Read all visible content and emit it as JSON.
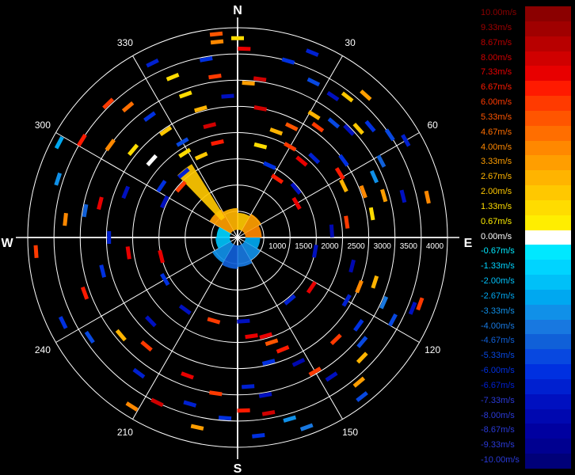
{
  "chart_data": {
    "type": "polar-radar-scatter",
    "center_marker": "+",
    "compass": {
      "north": "N",
      "south": "S",
      "east": "E",
      "west": "W"
    },
    "angle_labels": [
      {
        "deg": 30,
        "text": "30"
      },
      {
        "deg": 60,
        "text": "60"
      },
      {
        "deg": 120,
        "text": "120"
      },
      {
        "deg": 150,
        "text": "150"
      },
      {
        "deg": 210,
        "text": "210"
      },
      {
        "deg": 240,
        "text": "240"
      },
      {
        "deg": 300,
        "text": "300"
      },
      {
        "deg": 330,
        "text": "330"
      }
    ],
    "range_max": 4000,
    "range_rings": [
      500,
      1000,
      1500,
      2000,
      2500,
      3000,
      3500,
      4000
    ],
    "range_labels": [
      "1000",
      "1500",
      "2000",
      "2500",
      "3000",
      "3500",
      "4000"
    ],
    "spokes_deg": [
      0,
      30,
      60,
      90,
      120,
      150,
      180,
      210,
      240,
      270,
      300,
      330
    ],
    "legend": [
      {
        "label": "10.00m/s",
        "value": 10.0,
        "color": "#8b0000"
      },
      {
        "label": "9.33m/s",
        "value": 9.33,
        "color": "#a00000"
      },
      {
        "label": "8.67m/s",
        "value": 8.67,
        "color": "#b80000"
      },
      {
        "label": "8.00m/s",
        "value": 8.0,
        "color": "#d00000"
      },
      {
        "label": "7.33m/s",
        "value": 7.33,
        "color": "#e80000"
      },
      {
        "label": "6.67m/s",
        "value": 6.67,
        "color": "#ff1a00"
      },
      {
        "label": "6.00m/s",
        "value": 6.0,
        "color": "#ff3a00"
      },
      {
        "label": "5.33m/s",
        "value": 5.33,
        "color": "#ff5500"
      },
      {
        "label": "4.67m/s",
        "value": 4.67,
        "color": "#ff6e00"
      },
      {
        "label": "4.00m/s",
        "value": 4.0,
        "color": "#ff8800"
      },
      {
        "label": "3.33m/s",
        "value": 3.33,
        "color": "#ff9e00"
      },
      {
        "label": "2.67m/s",
        "value": 2.67,
        "color": "#ffb400"
      },
      {
        "label": "2.00m/s",
        "value": 2.0,
        "color": "#ffc800"
      },
      {
        "label": "1.33m/s",
        "value": 1.33,
        "color": "#ffdc00"
      },
      {
        "label": "0.67m/s",
        "value": 0.67,
        "color": "#ffee00"
      },
      {
        "label": "0.00m/s",
        "value": 0.0,
        "color": "#ffffff"
      },
      {
        "label": "-0.67m/s",
        "value": -0.67,
        "color": "#00e8ff"
      },
      {
        "label": "-1.33m/s",
        "value": -1.33,
        "color": "#00d4ff"
      },
      {
        "label": "-2.00m/s",
        "value": -2.0,
        "color": "#00c0f8"
      },
      {
        "label": "-2.67m/s",
        "value": -2.67,
        "color": "#00a8f0"
      },
      {
        "label": "-3.33m/s",
        "value": -3.33,
        "color": "#1090e8"
      },
      {
        "label": "-4.00m/s",
        "value": -4.0,
        "color": "#1878e0"
      },
      {
        "label": "-4.67m/s",
        "value": -4.67,
        "color": "#1060d8"
      },
      {
        "label": "-5.33m/s",
        "value": -5.33,
        "color": "#0848e0"
      },
      {
        "label": "-6.00m/s",
        "value": -6.0,
        "color": "#0030e0"
      },
      {
        "label": "-6.67m/s",
        "value": -6.67,
        "color": "#0020d0"
      },
      {
        "label": "-7.33m/s",
        "value": -7.33,
        "color": "#0010c0"
      },
      {
        "label": "-8.00m/s",
        "value": -8.0,
        "color": "#0008b0"
      },
      {
        "label": "-8.67m/s",
        "value": -8.67,
        "color": "#0000a0"
      },
      {
        "label": "-9.33m/s",
        "value": -9.33,
        "color": "#000090"
      },
      {
        "label": "-10.00m/s",
        "value": -10.0,
        "color": "#000078"
      }
    ],
    "points": [
      {
        "az": 0,
        "r": 3800,
        "v": 1.3
      },
      {
        "az": 354,
        "r": 3750,
        "v": 4.0
      },
      {
        "az": 354,
        "r": 3900,
        "v": 5.3
      },
      {
        "az": 2,
        "r": 3600,
        "v": 7.3
      },
      {
        "az": 8,
        "r": 3050,
        "v": 8.0
      },
      {
        "az": 4,
        "r": 2950,
        "v": 3.0
      },
      {
        "az": 16,
        "r": 3500,
        "v": -6.0
      },
      {
        "az": 22,
        "r": 3800,
        "v": -6.7
      },
      {
        "az": 26,
        "r": 3300,
        "v": -5.3
      },
      {
        "az": 34,
        "r": 3250,
        "v": -7.3
      },
      {
        "az": 38,
        "r": 3400,
        "v": 2.0
      },
      {
        "az": 42,
        "r": 3650,
        "v": 3.3
      },
      {
        "az": 32,
        "r": 2750,
        "v": 2.7
      },
      {
        "az": 36,
        "r": 2600,
        "v": 6.0
      },
      {
        "az": 40,
        "r": 2850,
        "v": -5.3
      },
      {
        "az": 46,
        "r": 2950,
        "v": -7.3
      },
      {
        "az": 50,
        "r": 3300,
        "v": -6.0
      },
      {
        "az": 48,
        "r": 3100,
        "v": 2.0
      },
      {
        "az": 56,
        "r": 3500,
        "v": -5.3
      },
      {
        "az": 60,
        "r": 3700,
        "v": -6.7
      },
      {
        "az": 62,
        "r": 3100,
        "v": -4.7
      },
      {
        "az": 66,
        "r": 2850,
        "v": -3.3
      },
      {
        "az": 54,
        "r": 2500,
        "v": -6.0
      },
      {
        "az": 58,
        "r": 2300,
        "v": 6.7
      },
      {
        "az": 64,
        "r": 2250,
        "v": 2.7
      },
      {
        "az": 70,
        "r": 2550,
        "v": 4.0
      },
      {
        "az": 74,
        "r": 2900,
        "v": 3.3
      },
      {
        "az": 76,
        "r": 3250,
        "v": -7.3
      },
      {
        "az": 80,
        "r": 2600,
        "v": 1.3
      },
      {
        "az": 82,
        "r": 2100,
        "v": 6.0
      },
      {
        "az": 86,
        "r": 1800,
        "v": -8.0
      },
      {
        "az": 78,
        "r": 3700,
        "v": 4.0
      },
      {
        "az": 44,
        "r": 2100,
        "v": -6.7
      },
      {
        "az": 40,
        "r": 1900,
        "v": 7.3
      },
      {
        "az": 30,
        "r": 2000,
        "v": 6.0
      },
      {
        "az": 26,
        "r": 2350,
        "v": 5.3
      },
      {
        "az": 20,
        "r": 2150,
        "v": 2.7
      },
      {
        "az": 14,
        "r": 1800,
        "v": 1.3
      },
      {
        "az": 10,
        "r": 2500,
        "v": 8.0
      },
      {
        "az": 24,
        "r": 1500,
        "v": -6.0
      },
      {
        "az": 34,
        "r": 1350,
        "v": 6.7
      },
      {
        "az": 50,
        "r": 1450,
        "v": -7.3
      },
      {
        "az": 60,
        "r": 1300,
        "v": 7.3
      },
      {
        "az": 110,
        "r": 3700,
        "v": 6.0
      },
      {
        "az": 112,
        "r": 3600,
        "v": -7.3
      },
      {
        "az": 118,
        "r": 3350,
        "v": -5.3
      },
      {
        "az": 114,
        "r": 3050,
        "v": -4.0
      },
      {
        "az": 108,
        "r": 2750,
        "v": 2.7
      },
      {
        "az": 112,
        "r": 2500,
        "v": 4.0
      },
      {
        "az": 104,
        "r": 2250,
        "v": -8.0
      },
      {
        "az": 120,
        "r": 2400,
        "v": -6.7
      },
      {
        "az": 126,
        "r": 2850,
        "v": -6.0
      },
      {
        "az": 130,
        "r": 3100,
        "v": -5.3
      },
      {
        "az": 136,
        "r": 2700,
        "v": 6.0
      },
      {
        "az": 134,
        "r": 3300,
        "v": 2.7
      },
      {
        "az": 140,
        "r": 3600,
        "v": 3.3
      },
      {
        "az": 142,
        "r": 3850,
        "v": -5.3
      },
      {
        "az": 146,
        "r": 3200,
        "v": -7.3
      },
      {
        "az": 150,
        "r": 2950,
        "v": 6.0
      },
      {
        "az": 154,
        "r": 2650,
        "v": -8.0
      },
      {
        "az": 158,
        "r": 2300,
        "v": 6.7
      },
      {
        "az": 162,
        "r": 2100,
        "v": 5.3
      },
      {
        "az": 164,
        "r": 1950,
        "v": 7.3
      },
      {
        "az": 166,
        "r": 2450,
        "v": -6.0
      },
      {
        "az": 170,
        "r": 3050,
        "v": -7.3
      },
      {
        "az": 170,
        "r": 3400,
        "v": 8.0
      },
      {
        "az": 164,
        "r": 3600,
        "v": -3.3
      },
      {
        "az": 160,
        "r": 3850,
        "v": -4.0
      },
      {
        "az": 174,
        "r": 3800,
        "v": -6.0
      },
      {
        "az": 178,
        "r": 3300,
        "v": 6.7
      },
      {
        "az": 176,
        "r": 2850,
        "v": -6.7
      },
      {
        "az": 172,
        "r": 1900,
        "v": 7.3
      },
      {
        "az": 176,
        "r": 1600,
        "v": -7.3
      },
      {
        "az": 184,
        "r": 3450,
        "v": -6.0
      },
      {
        "az": 188,
        "r": 3000,
        "v": 6.0
      },
      {
        "az": 192,
        "r": 3700,
        "v": 3.3
      },
      {
        "az": 196,
        "r": 3300,
        "v": -6.7
      },
      {
        "az": 200,
        "r": 2800,
        "v": 7.3
      },
      {
        "az": 206,
        "r": 3500,
        "v": 8.0
      },
      {
        "az": 212,
        "r": 3800,
        "v": 4.0
      },
      {
        "az": 216,
        "r": 3200,
        "v": -6.7
      },
      {
        "az": 220,
        "r": 2700,
        "v": 6.0
      },
      {
        "az": 226,
        "r": 2300,
        "v": -7.3
      },
      {
        "az": 230,
        "r": 2900,
        "v": 2.7
      },
      {
        "az": 236,
        "r": 3400,
        "v": -5.3
      },
      {
        "az": 244,
        "r": 3700,
        "v": -6.0
      },
      {
        "az": 250,
        "r": 3100,
        "v": 6.7
      },
      {
        "az": 256,
        "r": 2650,
        "v": -6.0
      },
      {
        "az": 262,
        "r": 2100,
        "v": 7.3
      },
      {
        "az": 266,
        "r": 3850,
        "v": 6.0
      },
      {
        "az": 270,
        "r": 2450,
        "v": -6.7
      },
      {
        "az": 276,
        "r": 3300,
        "v": 4.0
      },
      {
        "az": 280,
        "r": 2950,
        "v": -4.7
      },
      {
        "az": 284,
        "r": 2700,
        "v": 7.3
      },
      {
        "az": 288,
        "r": 3600,
        "v": -3.3
      },
      {
        "az": 292,
        "r": 2300,
        "v": -7.3
      },
      {
        "az": 298,
        "r": 3850,
        "v": -2.7
      },
      {
        "az": 302,
        "r": 3500,
        "v": 6.7
      },
      {
        "az": 306,
        "r": 3000,
        "v": 4.0
      },
      {
        "az": 310,
        "r": 2600,
        "v": 1.3
      },
      {
        "az": 312,
        "r": 2200,
        "v": 0.0
      },
      {
        "az": 316,
        "r": 3550,
        "v": 6.0
      },
      {
        "az": 320,
        "r": 3250,
        "v": 4.7
      },
      {
        "az": 324,
        "r": 2850,
        "v": -6.0
      },
      {
        "az": 326,
        "r": 2450,
        "v": 2.0
      },
      {
        "az": 330,
        "r": 2100,
        "v": -5.3
      },
      {
        "az": 334,
        "r": 3700,
        "v": -6.7
      },
      {
        "az": 338,
        "r": 3300,
        "v": 1.3
      },
      {
        "az": 340,
        "r": 2900,
        "v": 1.3
      },
      {
        "az": 344,
        "r": 2550,
        "v": 2.7
      },
      {
        "az": 346,
        "r": 2200,
        "v": 8.0
      },
      {
        "az": 348,
        "r": 1850,
        "v": 6.7
      },
      {
        "az": 350,
        "r": 3450,
        "v": -6.0
      },
      {
        "az": 352,
        "r": 3100,
        "v": 6.0
      },
      {
        "az": 356,
        "r": 2700,
        "v": -7.3
      },
      {
        "az": 336,
        "r": 1700,
        "v": 2.0
      },
      {
        "az": 328,
        "r": 1900,
        "v": 1.3
      },
      {
        "az": 320,
        "r": 1600,
        "v": -6.7
      },
      {
        "az": 312,
        "r": 1450,
        "v": 6.0
      },
      {
        "az": 304,
        "r": 1750,
        "v": -6.0
      },
      {
        "az": 296,
        "r": 1550,
        "v": -7.3
      },
      {
        "az": 256,
        "r": 1500,
        "v": 7.3
      },
      {
        "az": 240,
        "r": 1600,
        "v": -6.0
      },
      {
        "az": 216,
        "r": 1700,
        "v": -7.3
      },
      {
        "az": 196,
        "r": 1650,
        "v": 6.0
      },
      {
        "az": 140,
        "r": 1550,
        "v": -6.7
      },
      {
        "az": 124,
        "r": 1700,
        "v": 7.3
      },
      {
        "az": 100,
        "r": 1500,
        "v": -7.3
      }
    ],
    "near_wedges": [
      {
        "from": 300,
        "to": 330,
        "r0": 150,
        "r1": 620,
        "v": 3.3
      },
      {
        "from": 330,
        "to": 360,
        "r0": 150,
        "r1": 560,
        "v": 2.7
      },
      {
        "from": 0,
        "to": 30,
        "r0": 150,
        "r1": 470,
        "v": 2.0
      },
      {
        "from": 30,
        "to": 60,
        "r0": 150,
        "r1": 520,
        "v": 3.3
      },
      {
        "from": 60,
        "to": 90,
        "r0": 150,
        "r1": 460,
        "v": 4.0
      },
      {
        "from": 90,
        "to": 120,
        "r0": 150,
        "r1": 430,
        "v": -2.7
      },
      {
        "from": 120,
        "to": 150,
        "r0": 150,
        "r1": 500,
        "v": -3.3
      },
      {
        "from": 150,
        "to": 180,
        "r0": 150,
        "r1": 560,
        "v": -4.0
      },
      {
        "from": 180,
        "to": 210,
        "r0": 150,
        "r1": 600,
        "v": -4.7
      },
      {
        "from": 210,
        "to": 240,
        "r0": 150,
        "r1": 560,
        "v": -3.3
      },
      {
        "from": 240,
        "to": 270,
        "r0": 150,
        "r1": 420,
        "v": -2.0
      },
      {
        "from": 270,
        "to": 300,
        "r0": 150,
        "r1": 400,
        "v": -1.3
      },
      {
        "from": 316,
        "to": 328,
        "r0": 450,
        "r1": 1650,
        "v": 2.0
      }
    ]
  }
}
